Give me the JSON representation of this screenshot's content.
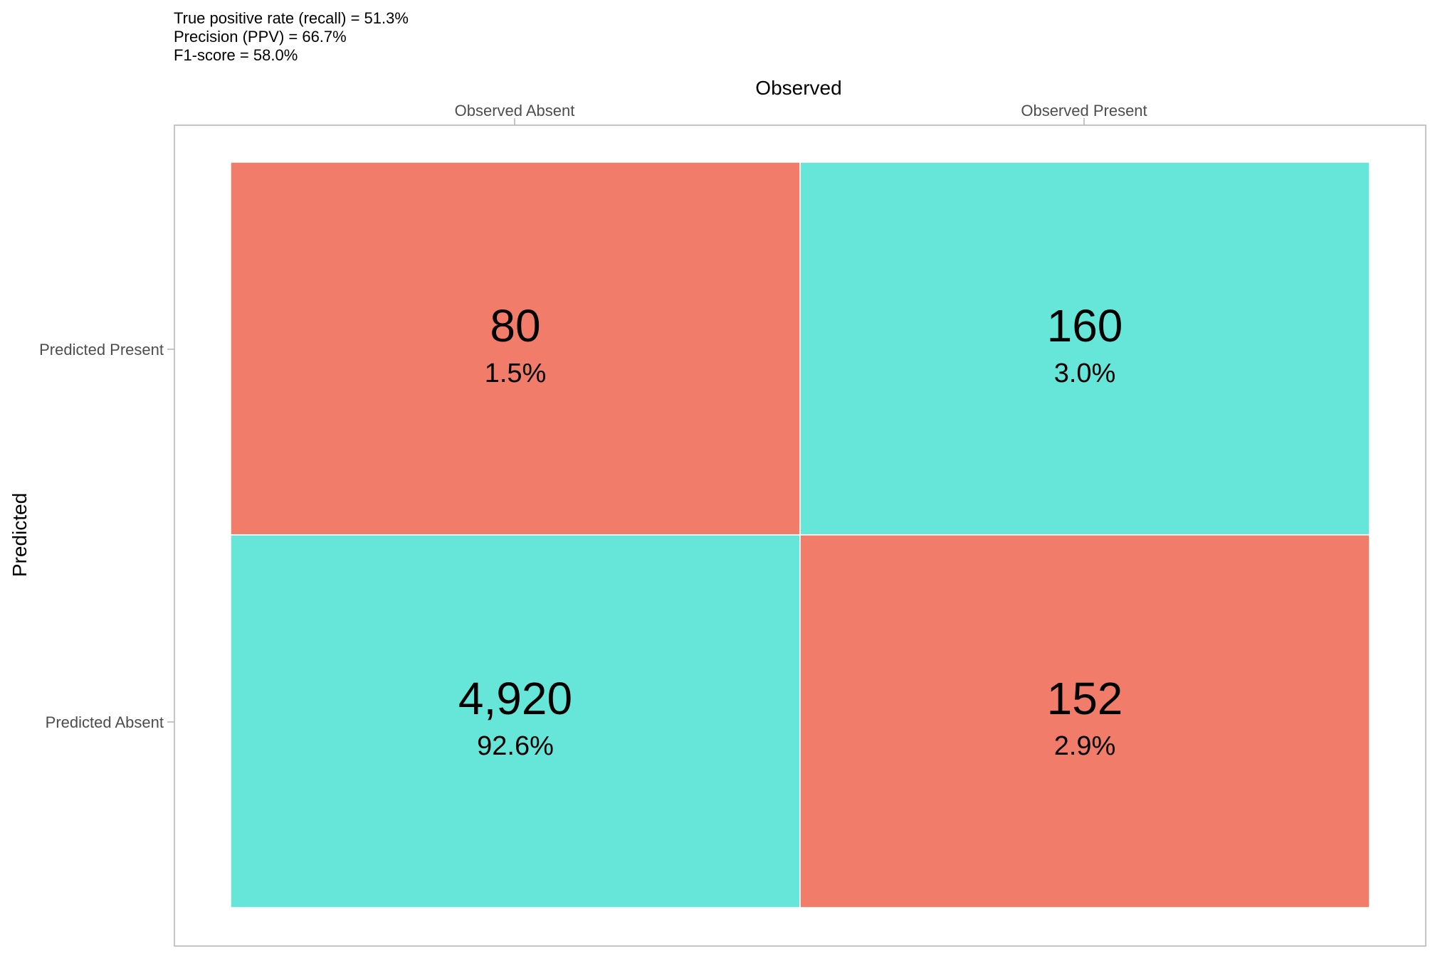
{
  "chart_data": {
    "type": "heatmap",
    "title_lines": [
      "True positive rate (recall) = 51.3%",
      "Precision (PPV) = 66.7%",
      "F1-score = 58.0%"
    ],
    "xlabel": "Observed",
    "ylabel": "Predicted",
    "x_categories": [
      "Observed Absent",
      "Observed Present"
    ],
    "y_categories": [
      "Predicted Present",
      "Predicted Absent"
    ],
    "cells": [
      {
        "row": 0,
        "col": 0,
        "count": "80",
        "percent": "1.5%",
        "correct": false
      },
      {
        "row": 0,
        "col": 1,
        "count": "160",
        "percent": "3.0%",
        "correct": true
      },
      {
        "row": 1,
        "col": 0,
        "count": "4,920",
        "percent": "92.6%",
        "correct": true
      },
      {
        "row": 1,
        "col": 1,
        "count": "152",
        "percent": "2.9%",
        "correct": false
      }
    ],
    "colors": {
      "correct": "#66e6d9",
      "incorrect": "#f17c6a"
    }
  }
}
